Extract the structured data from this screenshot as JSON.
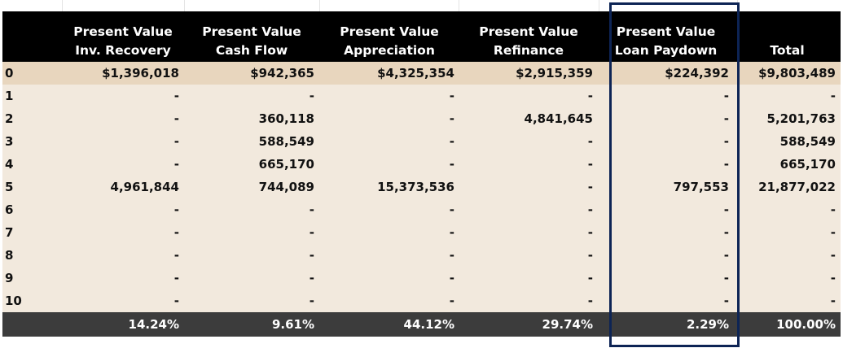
{
  "table": {
    "headers": [
      {
        "line1": "",
        "line2": ""
      },
      {
        "line1": "Present Value",
        "line2": "Inv. Recovery"
      },
      {
        "line1": "Present Value",
        "line2": "Cash Flow"
      },
      {
        "line1": "Present Value",
        "line2": "Appreciation"
      },
      {
        "line1": "Present Value",
        "line2": "Refinance"
      },
      {
        "line1": "Present Value",
        "line2": "Loan Paydown"
      },
      {
        "line1": "",
        "line2": "Total"
      }
    ],
    "rows": [
      [
        "0",
        "$1,396,018",
        "$942,365",
        "$4,325,354",
        "$2,915,359",
        "$224,392",
        "$9,803,489"
      ],
      [
        "1",
        "-",
        "-",
        "-",
        "-",
        "-",
        "-"
      ],
      [
        "2",
        "-",
        "360,118",
        "-",
        "4,841,645",
        "-",
        "5,201,763"
      ],
      [
        "3",
        "-",
        "588,549",
        "-",
        "-",
        "-",
        "588,549"
      ],
      [
        "4",
        "-",
        "665,170",
        "-",
        "-",
        "-",
        "665,170"
      ],
      [
        "5",
        "4,961,844",
        "744,089",
        "15,373,536",
        "-",
        "797,553",
        "21,877,022"
      ],
      [
        "6",
        "-",
        "-",
        "-",
        "-",
        "-",
        "-"
      ],
      [
        "7",
        "-",
        "-",
        "-",
        "-",
        "-",
        "-"
      ],
      [
        "8",
        "-",
        "-",
        "-",
        "-",
        "-",
        "-"
      ],
      [
        "9",
        "-",
        "-",
        "-",
        "-",
        "-",
        "-"
      ],
      [
        "10",
        "-",
        "-",
        "-",
        "-",
        "-",
        "-"
      ]
    ],
    "totals": [
      "",
      "14.24%",
      "9.61%",
      "44.12%",
      "29.74%",
      "2.29%",
      "100.00%"
    ]
  },
  "colors": {
    "header_bg": "#000000",
    "first_row_bg": "#e8d6be",
    "body_bg": "#f2e9dd",
    "totals_bg": "#3c3c3c",
    "highlight_border": "#0d2455"
  }
}
